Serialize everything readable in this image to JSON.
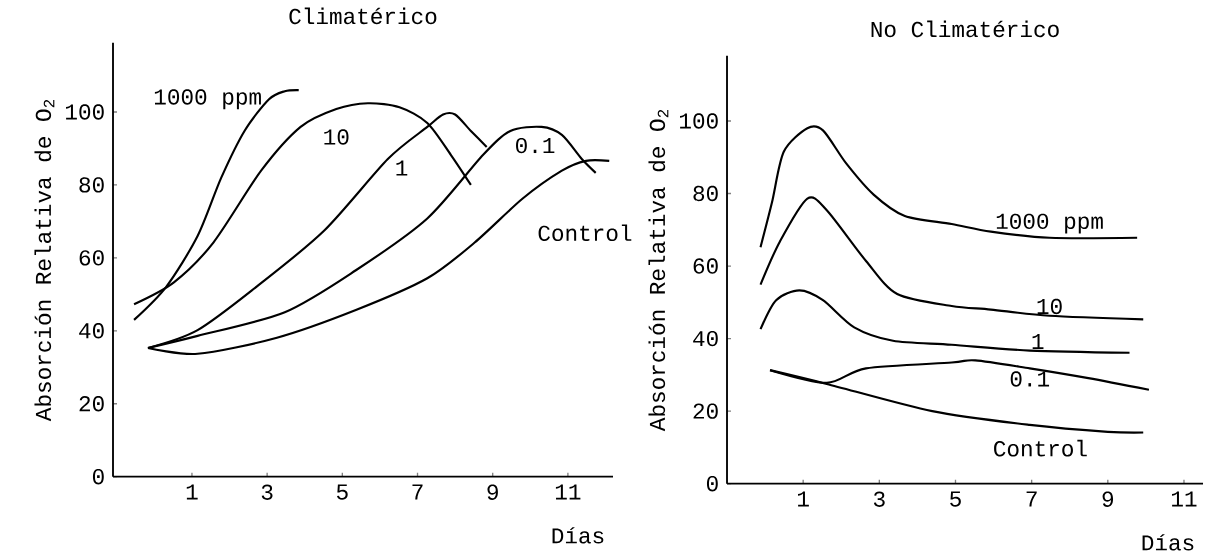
{
  "chart_data": [
    {
      "type": "line",
      "title": "Climatérico",
      "xlabel": "Días",
      "ylabel": "Absorción Relativa de O$_{2}$",
      "xlim": [
        -1.1,
        12.2
      ],
      "ylim": [
        0,
        119
      ],
      "xticks": [
        1,
        3,
        5,
        7,
        9,
        11
      ],
      "yticks": [
        0,
        20,
        40,
        60,
        80,
        100
      ],
      "series": [
        {
          "name": "1000 ppm",
          "color": "#000000",
          "x": [
            -0.54,
            0.31,
            1.15,
            1.78,
            2.41,
            3.05,
            3.47,
            3.84
          ],
          "values": [
            43,
            52,
            66,
            82,
            95,
            103.5,
            105.7,
            106
          ]
        },
        {
          "name": "10",
          "color": "#000000",
          "x": [
            -0.54,
            0.52,
            1.57,
            2.84,
            3.89,
            4.84,
            5.68,
            6.52,
            7.26,
            7.89,
            8.42
          ],
          "values": [
            47.3,
            53.3,
            64.2,
            83.9,
            95.9,
            100.8,
            102.4,
            101.3,
            97,
            88.2,
            80
          ]
        },
        {
          "name": "1",
          "color": "#000000",
          "x": [
            -0.17,
            1.15,
            2.73,
            4.52,
            6.21,
            7.26,
            7.68,
            8.0,
            8.42,
            8.84
          ],
          "values": [
            35.3,
            40.2,
            52.2,
            67.5,
            87.1,
            95.9,
            99.3,
            99.3,
            94.8,
            90.4
          ]
        },
        {
          "name": "0.1",
          "color": "#000000",
          "x": [
            -0.17,
            1.15,
            3.47,
            5.36,
            7.26,
            8.74,
            9.47,
            10.3,
            10.84,
            11.37,
            11.74
          ],
          "values": [
            35.3,
            38.6,
            45.1,
            56.6,
            70.8,
            88.2,
            94.8,
            95.9,
            93.7,
            87.1,
            83.3
          ]
        },
        {
          "name": "Control",
          "color": "#000000",
          "x": [
            -0.17,
            1.15,
            3.26,
            5.36,
            7.26,
            8.52,
            9.79,
            10.84,
            11.48,
            12.1
          ],
          "values": [
            35.3,
            33.7,
            38.1,
            45.7,
            54.4,
            64.2,
            76.2,
            83.9,
            86.6,
            86.6
          ]
        }
      ]
    },
    {
      "type": "line",
      "title": "No Climatérico",
      "xlabel": "Días",
      "ylabel": "Absorción Relativa de O$_{2}$",
      "xlim": [
        -1.0,
        11.5
      ],
      "ylim": [
        0,
        118
      ],
      "xticks": [
        1,
        3,
        5,
        7,
        9,
        11
      ],
      "yticks": [
        0,
        20,
        40,
        60,
        80,
        100
      ],
      "series": [
        {
          "name": "1000 ppm",
          "color": "#000000",
          "x": [
            -0.12,
            0.18,
            0.49,
            1.11,
            1.52,
            2.13,
            2.85,
            3.67,
            4.9,
            5.93,
            7.47,
            9.77
          ],
          "values": [
            65.2,
            77.5,
            91.5,
            98,
            97.4,
            88.3,
            79.7,
            73.8,
            71.6,
            69.5,
            67.8,
            67.8
          ]
        },
        {
          "name": "10",
          "color": "#000000",
          "x": [
            -0.12,
            0.39,
            1.11,
            1.62,
            2.65,
            3.47,
            4.9,
            5.93,
            7.47,
            9.93
          ],
          "values": [
            54.9,
            66.8,
            78.6,
            75.4,
            61.4,
            52.3,
            49,
            48,
            46.3,
            45.3
          ]
        },
        {
          "name": "1",
          "color": "#000000",
          "x": [
            -0.12,
            0.29,
            0.9,
            1.52,
            2.34,
            3.36,
            4.9,
            6.95,
            9.57
          ],
          "values": [
            42.6,
            50.6,
            53.3,
            50.6,
            43.1,
            39.4,
            38.3,
            36.7,
            36.1
          ]
        },
        {
          "name": "0.1",
          "color": "#000000",
          "x": [
            0.13,
            1.62,
            2.65,
            4.9,
            5.52,
            6.95,
            8.49,
            10.08
          ],
          "values": [
            31.3,
            27.8,
            31.8,
            33.4,
            34,
            31.8,
            29.1,
            25.9
          ]
        },
        {
          "name": "Control",
          "color": "#000000",
          "x": [
            0.13,
            1.62,
            4.39,
            6.95,
            9.0,
            9.93
          ],
          "values": [
            31.3,
            27.5,
            20,
            16.2,
            14.3,
            14.1
          ]
        }
      ]
    }
  ]
}
